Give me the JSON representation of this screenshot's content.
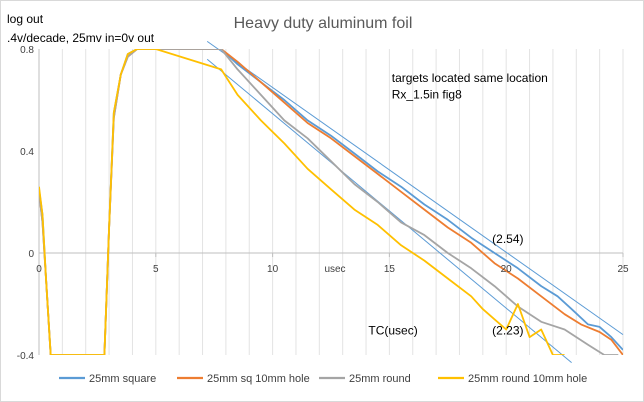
{
  "chart_data": {
    "type": "line",
    "title": "Heavy duty aluminum foil",
    "ylabel_lines": [
      "log out",
      ".4v/decade, 25mv in=0v out"
    ],
    "xlabel": "usec",
    "xlim": [
      0,
      25
    ],
    "ylim": [
      -0.4,
      0.8
    ],
    "x_ticks": [
      0,
      5,
      10,
      15,
      20,
      25
    ],
    "y_ticks": [
      -0.4,
      0,
      0.4,
      0.8
    ],
    "y_tick_labels": [
      "-0.4",
      "0",
      "0.4",
      "0.8"
    ],
    "grid": {
      "vertical": true,
      "horizontal": false,
      "v_step": 1
    },
    "legend_position": "bottom",
    "annotations": [
      {
        "text": "targets located same location",
        "x": 15.1,
        "y": 0.67
      },
      {
        "text": "Rx_1.5in fig8",
        "x": 15.1,
        "y": 0.605
      },
      {
        "text": "(2.54)",
        "x": 19.4,
        "y": 0.04
      },
      {
        "text": "(2.23)",
        "x": 19.4,
        "y": -0.32
      },
      {
        "text": "TC(usec)",
        "x": 14.1,
        "y": -0.32
      }
    ],
    "fit_lines": [
      {
        "name": "fit (2.54)",
        "x": [
          7.2,
          25
        ],
        "y": [
          0.83,
          -0.32
        ],
        "color": "#5b9bd5"
      },
      {
        "name": "fit (2.23)",
        "x": [
          7.2,
          22.8
        ],
        "y": [
          0.76,
          -0.43
        ],
        "color": "#5b9bd5"
      }
    ],
    "series": [
      {
        "name": "25mm square",
        "color": "#5b9bd5",
        "x": [
          0,
          0.15,
          0.3,
          0.5,
          2.8,
          3.0,
          3.2,
          3.5,
          3.8,
          4.2,
          4.6,
          5.0,
          7.8,
          8.5,
          9.5,
          10.5,
          11.5,
          12.5,
          13.5,
          14.5,
          15.5,
          16.5,
          17.5,
          18.5,
          19.5,
          20.5,
          21.5,
          22.2,
          22.8,
          23.5,
          24.0,
          24.5,
          25.0
        ],
        "y": [
          0.25,
          0.15,
          -0.1,
          -0.4,
          -0.4,
          0.1,
          0.55,
          0.7,
          0.78,
          0.8,
          0.8,
          0.8,
          0.8,
          0.74,
          0.67,
          0.6,
          0.52,
          0.46,
          0.39,
          0.32,
          0.26,
          0.19,
          0.13,
          0.06,
          0.0,
          -0.06,
          -0.13,
          -0.17,
          -0.22,
          -0.28,
          -0.29,
          -0.33,
          -0.38
        ]
      },
      {
        "name": "25mm sq 10mm hole",
        "color": "#ed7d31",
        "x": [
          0,
          0.15,
          0.3,
          0.5,
          2.8,
          3.0,
          3.2,
          3.5,
          3.8,
          4.2,
          4.6,
          5.0,
          7.8,
          8.5,
          9.5,
          10.5,
          11.5,
          12.5,
          13.5,
          14.5,
          15.5,
          16.5,
          17.5,
          18.5,
          19.5,
          20.5,
          21.5,
          22.5,
          23.2,
          24.0,
          24.5,
          25.0
        ],
        "y": [
          0.24,
          0.12,
          -0.1,
          -0.4,
          -0.4,
          0.1,
          0.53,
          0.7,
          0.77,
          0.8,
          0.8,
          0.8,
          0.8,
          0.75,
          0.67,
          0.59,
          0.51,
          0.45,
          0.38,
          0.31,
          0.24,
          0.17,
          0.1,
          0.04,
          -0.04,
          -0.1,
          -0.17,
          -0.24,
          -0.28,
          -0.31,
          -0.34,
          -0.4
        ]
      },
      {
        "name": "25mm round",
        "color": "#a5a5a5",
        "x": [
          0,
          0.15,
          0.3,
          0.5,
          2.8,
          3.0,
          3.2,
          3.5,
          3.8,
          4.2,
          4.6,
          5.0,
          7.8,
          8.5,
          9.5,
          10.5,
          11.5,
          12.5,
          13.5,
          14.5,
          15.5,
          16.5,
          17.5,
          18.5,
          19.5,
          20.5,
          21.5,
          22.5,
          23.5,
          24.2,
          24.8
        ],
        "y": [
          0.24,
          0.12,
          -0.1,
          -0.4,
          -0.4,
          0.1,
          0.53,
          0.7,
          0.77,
          0.8,
          0.8,
          0.8,
          0.8,
          0.72,
          0.62,
          0.52,
          0.45,
          0.36,
          0.27,
          0.2,
          0.12,
          0.07,
          0.0,
          -0.06,
          -0.13,
          -0.21,
          -0.27,
          -0.3,
          -0.36,
          -0.4,
          -0.4
        ]
      },
      {
        "name": "25mm round 10mm hole",
        "color": "#ffc000",
        "x": [
          0,
          0.15,
          0.3,
          0.5,
          2.8,
          3.0,
          3.2,
          3.5,
          3.8,
          4.2,
          4.6,
          5.0,
          7.8,
          8.5,
          9.5,
          10.5,
          11.5,
          12.5,
          13.5,
          14.5,
          15.5,
          16.5,
          17.5,
          18.5,
          19.0,
          19.5,
          20.0,
          20.5,
          21.0,
          21.5,
          22.0,
          22.5
        ],
        "y": [
          0.26,
          0.15,
          -0.1,
          -0.4,
          -0.4,
          0.1,
          0.55,
          0.7,
          0.78,
          0.8,
          0.8,
          0.8,
          0.72,
          0.62,
          0.52,
          0.43,
          0.33,
          0.25,
          0.17,
          0.11,
          0.03,
          -0.03,
          -0.1,
          -0.17,
          -0.22,
          -0.26,
          -0.3,
          -0.2,
          -0.33,
          -0.3,
          -0.4,
          -0.4
        ]
      }
    ]
  }
}
